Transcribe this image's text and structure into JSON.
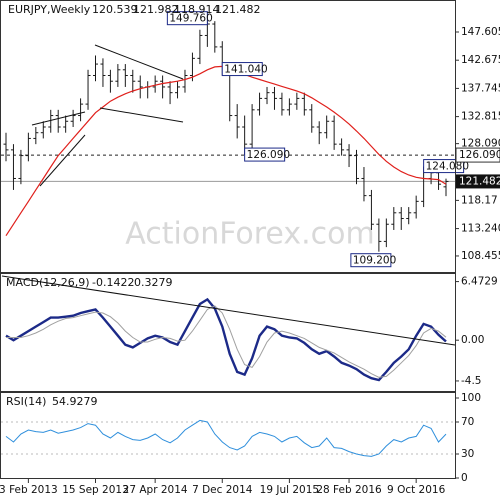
{
  "title": "EURJPY,Weekly",
  "watermark": "ActionForex.com",
  "chart_data": [
    {
      "type": "ohlc",
      "open": [
        128,
        127,
        122,
        126,
        129,
        130,
        131,
        133,
        131,
        132,
        133,
        135,
        140,
        142,
        140,
        139,
        141,
        140,
        139,
        138,
        138,
        139,
        138,
        137,
        138,
        140,
        143,
        147,
        149,
        145,
        141,
        133,
        131,
        128,
        134,
        136,
        137,
        136,
        134,
        135,
        136,
        134,
        131,
        130,
        132,
        128,
        127,
        126,
        122,
        119,
        114,
        111,
        114,
        116,
        115,
        116,
        118,
        122,
        123,
        120.539
      ],
      "high": [
        130,
        128,
        127,
        130,
        131,
        132,
        134,
        134,
        133,
        134,
        136,
        141,
        143.5,
        143,
        141,
        142,
        142,
        141,
        140,
        139,
        140,
        140,
        139,
        139,
        141,
        144,
        148,
        149.76,
        149.5,
        146,
        142,
        135,
        133,
        135,
        137,
        138,
        138,
        137,
        136,
        137,
        137,
        135,
        132,
        133,
        133,
        129,
        128,
        127,
        124,
        120,
        115,
        115,
        117,
        117,
        117,
        119,
        124.08,
        124,
        124,
        121.982
      ],
      "low": [
        125,
        120,
        121,
        125,
        128,
        129,
        130,
        130,
        130,
        131,
        132,
        134,
        139,
        138,
        137,
        138,
        138,
        137,
        136,
        136,
        137,
        136,
        135,
        136,
        137,
        139,
        142,
        145,
        144,
        140,
        132,
        129,
        126.09,
        127,
        133,
        135,
        134,
        133,
        133,
        134,
        133,
        130,
        128,
        129,
        127,
        126,
        124,
        121,
        118,
        113,
        109.2,
        110,
        113,
        113,
        114,
        115,
        117,
        121,
        120,
        118.914
      ],
      "close": [
        127,
        122,
        126,
        129,
        130,
        131,
        133,
        131,
        132,
        133,
        135,
        140,
        142,
        140,
        139,
        141,
        140,
        139,
        138,
        138,
        139,
        138,
        137,
        138,
        140,
        143,
        147,
        149,
        145,
        141,
        133,
        131,
        128,
        134,
        136,
        137,
        136,
        134,
        135,
        136,
        134,
        131,
        130,
        132,
        128,
        127,
        126,
        122,
        119,
        114,
        111,
        114,
        116,
        115,
        116,
        118,
        122,
        123,
        121,
        121.482
      ],
      "bar_color": "#1a1a1a",
      "series": [
        {
          "color": "#e0201c",
          "values": [
            112,
            114,
            116,
            118,
            120,
            122,
            124,
            126,
            127.5,
            129,
            130.5,
            132,
            133.5,
            134.5,
            135.5,
            136.2,
            136.8,
            137.3,
            137.7,
            138,
            138.3,
            138.6,
            138.8,
            139,
            139.3,
            139.7,
            140.3,
            141,
            141.5,
            141.6,
            141.3,
            140.8,
            140.2,
            139.7,
            139.3,
            138.9,
            138.5,
            138.1,
            137.7,
            137.3,
            136.8,
            136.1,
            135.3,
            134.5,
            133.6,
            132.6,
            131.5,
            130.3,
            129,
            127.6,
            126.2,
            125,
            124,
            123.2,
            122.6,
            122.2,
            122,
            121.9,
            121.8,
            121
          ]
        }
      ],
      "ylim": [
        106,
        152.5
      ],
      "yticks": [
        147.605,
        142.675,
        137.745,
        132.815,
        {
          "value": 128.09,
          "label": "128.090"
        },
        118.17,
        {
          "value": 113.24,
          "label": "113.240"
        },
        108.455
      ],
      "hlines": [
        {
          "value": 126.09,
          "label": "126.090"
        }
      ],
      "annotations": [
        {
          "label": "149.760",
          "value": 149.76,
          "index": 27
        },
        {
          "label": "141.040",
          "value": 141.04,
          "index": 29
        },
        {
          "label": "126.090",
          "value": 126.09,
          "index": 32
        },
        {
          "label": "124.080",
          "value": 124.08,
          "index": 56
        },
        {
          "label": "109.200",
          "value": 109.2,
          "index": 50
        }
      ]
    },
    {
      "type": "line",
      "title": "MACD(12,26,9)",
      "series": [
        {
          "color": "#1c2a88",
          "width": 2.4,
          "values": [
            0.5,
            0,
            0.5,
            1,
            1.5,
            2,
            2.5,
            2.5,
            2.6,
            2.7,
            3,
            3.2,
            3.4,
            2.5,
            1.5,
            0.5,
            -0.5,
            -0.8,
            -0.3,
            0.2,
            0.5,
            0.3,
            -0.2,
            -0.5,
            1,
            2.5,
            4,
            4.5,
            3.5,
            1.5,
            -1.5,
            -3.5,
            -3.8,
            -2,
            0.5,
            1.5,
            1.2,
            0.5,
            0.3,
            0.2,
            -0.3,
            -1,
            -1.5,
            -1.2,
            -1.8,
            -2.5,
            -2.8,
            -3.2,
            -3.8,
            -4.2,
            -4.4,
            -3.5,
            -2.5,
            -1.8,
            -1,
            0.5,
            1.8,
            1.5,
            0.6,
            -0.1422
          ]
        },
        {
          "color": "#a0a0a0",
          "width": 1,
          "values": [
            0.3,
            0.3,
            0.3,
            0.5,
            0.8,
            1.2,
            1.7,
            2.1,
            2.4,
            2.5,
            2.7,
            2.9,
            3.1,
            3,
            2.6,
            1.9,
            1,
            0.3,
            -0.2,
            -0.2,
            0.1,
            0.3,
            0.2,
            -0.1,
            0,
            1,
            2.2,
            3.4,
            3.8,
            3,
            1.2,
            -1,
            -2.7,
            -3,
            -1.8,
            -0.2,
            0.8,
            1,
            0.8,
            0.5,
            0.2,
            -0.3,
            -0.8,
            -1.1,
            -1.4,
            -1.9,
            -2.4,
            -2.8,
            -3.2,
            -3.7,
            -4.1,
            -4,
            -3.3,
            -2.5,
            -1.7,
            -0.6,
            0.8,
            1.3,
            1,
            0.3279
          ]
        }
      ],
      "ylim": [
        -5.5,
        7.2
      ],
      "yticks": [
        6.4729,
        {
          "value": 0,
          "label": "0.00"
        },
        -4.5
      ]
    },
    {
      "type": "line",
      "title": "RSI(14)",
      "categories": [
        null,
        null,
        null,
        "3 Feb 2013",
        null,
        null,
        null,
        null,
        null,
        null,
        null,
        null,
        "15 Sep 2013",
        null,
        null,
        null,
        null,
        null,
        null,
        null,
        "27 Apr 2014",
        null,
        null,
        null,
        null,
        null,
        null,
        null,
        null,
        "7 Dec 2014",
        null,
        null,
        null,
        null,
        null,
        null,
        null,
        null,
        "19 Jul 2015",
        null,
        null,
        null,
        null,
        null,
        null,
        null,
        "28 Feb 2016",
        null,
        null,
        null,
        null,
        null,
        null,
        null,
        null,
        "9 Oct 2016",
        null,
        null,
        null,
        null
      ],
      "series": [
        {
          "color": "#2f8fdc",
          "width": 1,
          "values": [
            52,
            45,
            55,
            60,
            58,
            57,
            60,
            56,
            58,
            60,
            63,
            68,
            66,
            55,
            50,
            57,
            52,
            48,
            47,
            50,
            55,
            48,
            44,
            50,
            60,
            66,
            72,
            70,
            55,
            45,
            38,
            35,
            40,
            52,
            57,
            55,
            52,
            45,
            50,
            52,
            44,
            38,
            40,
            50,
            38,
            37,
            33,
            30,
            28,
            27,
            30,
            40,
            48,
            45,
            50,
            52,
            66,
            62,
            45,
            54.9279
          ]
        }
      ],
      "ylim": [
        0,
        100
      ],
      "yticks": [
        100,
        70,
        30,
        0
      ],
      "dashed_levels": [
        70,
        30
      ]
    }
  ]
}
